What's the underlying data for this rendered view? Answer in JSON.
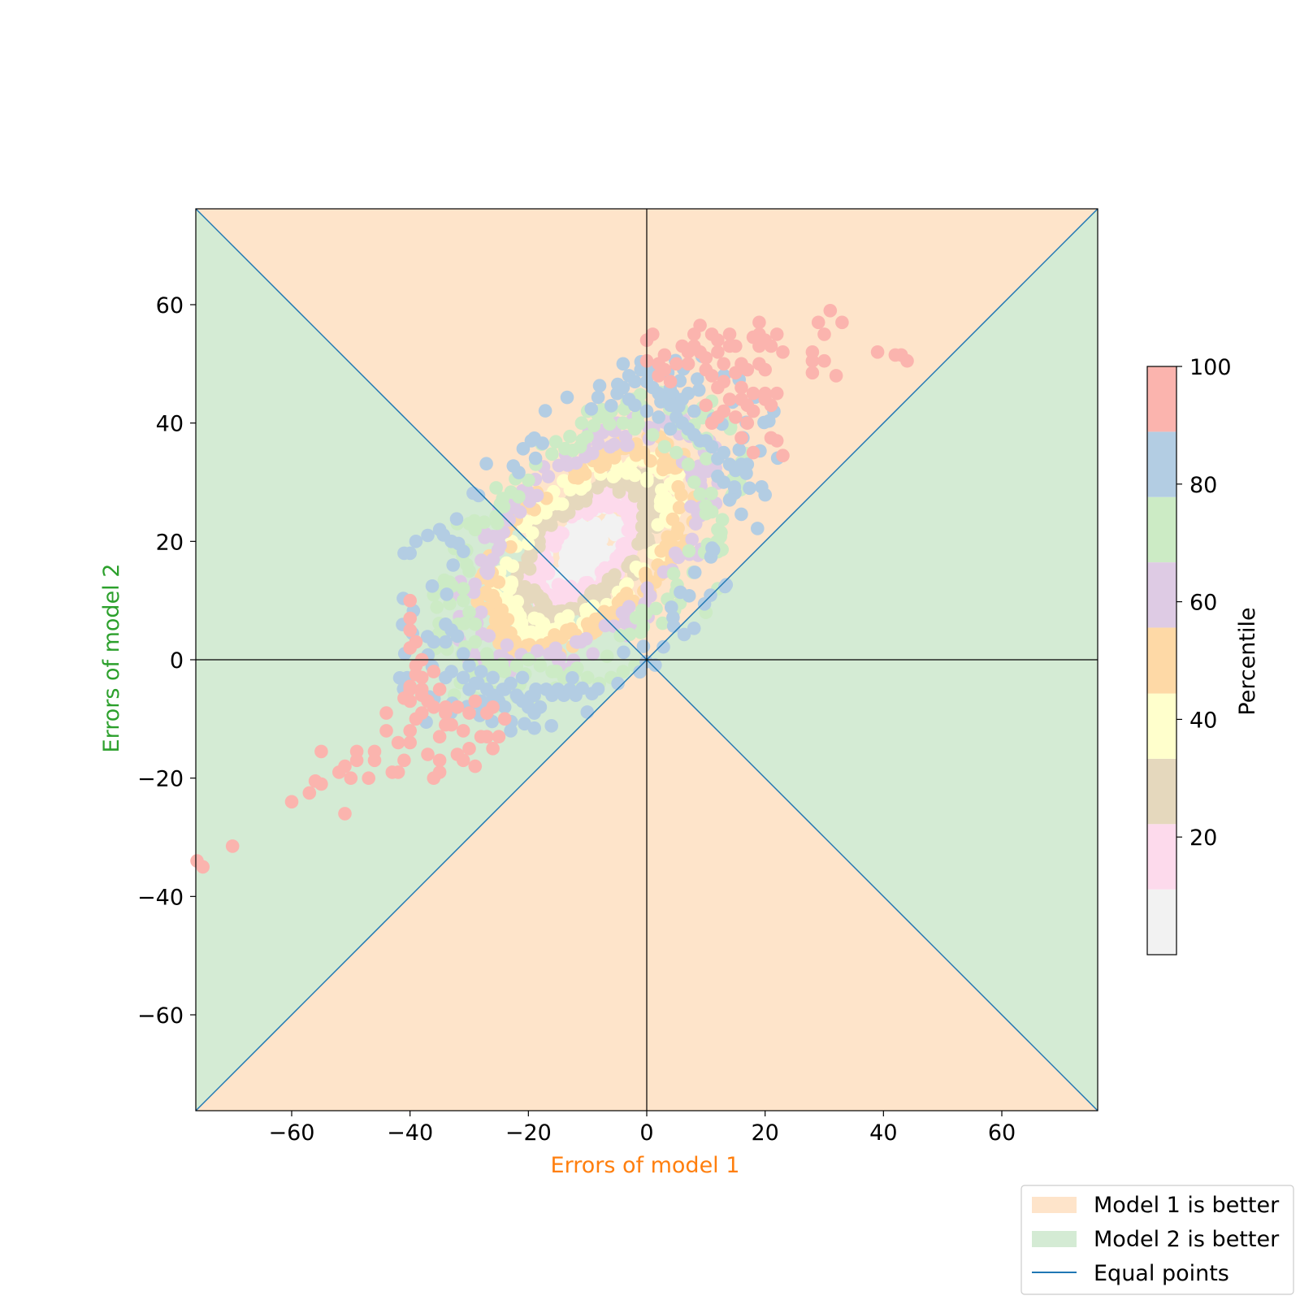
{
  "chart_data": {
    "type": "scatter",
    "xlabel": "Errors of model 1",
    "ylabel": "Errors of model 2",
    "xlim": [
      -76.2,
      76.2
    ],
    "ylim": [
      -76.2,
      76.2
    ],
    "xticks": [
      -60,
      -40,
      -20,
      0,
      20,
      40,
      60
    ],
    "yticks": [
      -60,
      -40,
      -20,
      0,
      20,
      40,
      60
    ],
    "tick_labels": [
      "−60",
      "−40",
      "−20",
      "0",
      "20",
      "40",
      "60"
    ],
    "xlabel_color": "#ff7f0e",
    "ylabel_color": "#2ca02c",
    "regions": [
      {
        "name": "Model 1 is better",
        "color": "#fee4ca"
      },
      {
        "name": "Model 2 is better",
        "color": "#d4ebd4"
      }
    ],
    "reference_lines": {
      "name": "Equal points",
      "color": "#1f77b4",
      "lines": [
        "y = x",
        "y = -x"
      ]
    },
    "center": [
      -10,
      19
    ],
    "colorbar": {
      "label": "Percentile",
      "range": [
        0,
        100
      ],
      "ticks": [
        20,
        40,
        60,
        80,
        100
      ],
      "tick_labels": [
        "20",
        "40",
        "60",
        "80",
        "100"
      ],
      "bins": [
        {
          "upto": 11.1,
          "color": "#f2f2f2"
        },
        {
          "upto": 22.2,
          "color": "#fddaec"
        },
        {
          "upto": 33.3,
          "color": "#e5d8bd"
        },
        {
          "upto": 44.4,
          "color": "#ffffcc"
        },
        {
          "upto": 55.6,
          "color": "#fed9a6"
        },
        {
          "upto": 66.7,
          "color": "#decbe4"
        },
        {
          "upto": 77.8,
          "color": "#ccebc5"
        },
        {
          "upto": 88.9,
          "color": "#b3cde3"
        },
        {
          "upto": 100,
          "color": "#fbb4ae"
        }
      ]
    },
    "outer_points": [
      [
        -76,
        -34
      ],
      [
        -75,
        -35
      ],
      [
        -70,
        -31.5
      ],
      [
        -60,
        -24
      ],
      [
        -57,
        -22.5
      ],
      [
        -56,
        -20.5
      ],
      [
        -55,
        -21
      ],
      [
        -55,
        -15.5
      ],
      [
        -52,
        -19
      ],
      [
        -51,
        -26
      ],
      [
        -51,
        -18
      ],
      [
        -50,
        -20
      ],
      [
        -49,
        -17
      ],
      [
        -49,
        -15.5
      ],
      [
        -47,
        -20
      ],
      [
        -46,
        -17
      ],
      [
        -46,
        -15.5
      ],
      [
        -44,
        -12
      ],
      [
        -44,
        -9
      ],
      [
        -43,
        -19
      ],
      [
        -42,
        -19
      ],
      [
        -42,
        -14
      ],
      [
        -41,
        -6.5
      ],
      [
        -41,
        -17
      ],
      [
        -40,
        -12
      ],
      [
        -40,
        -14
      ],
      [
        -39,
        -10
      ],
      [
        -38,
        -9
      ],
      [
        -38,
        -5
      ],
      [
        -37,
        -16
      ],
      [
        -36,
        -20
      ],
      [
        -35,
        -19
      ],
      [
        -35,
        -13
      ],
      [
        -35,
        -17
      ],
      [
        -34,
        -8
      ],
      [
        -34,
        -11
      ],
      [
        -32,
        -16
      ],
      [
        -31,
        -17
      ],
      [
        -30,
        -15
      ],
      [
        -29,
        -18
      ],
      [
        -28,
        -13
      ],
      [
        -27,
        -13
      ],
      [
        -27,
        -9
      ],
      [
        -26,
        -15
      ],
      [
        -25,
        -13
      ],
      [
        -24,
        -10
      ],
      [
        -26,
        -8
      ],
      [
        -38,
        -3
      ],
      [
        -38,
        -6
      ],
      [
        -39,
        -2.5
      ],
      [
        -40,
        -4.5
      ],
      [
        -40,
        -5
      ],
      [
        -40,
        -7
      ],
      [
        -39,
        -1
      ],
      [
        -40,
        2
      ],
      [
        -39,
        3
      ],
      [
        -40,
        7
      ],
      [
        -40,
        5
      ],
      [
        -40,
        10
      ],
      [
        -38,
        0
      ],
      [
        -36,
        -2
      ],
      [
        -35,
        -5
      ],
      [
        -37,
        -7
      ],
      [
        -36,
        -8
      ],
      [
        -34,
        -9
      ],
      [
        -32,
        -8
      ],
      [
        -33,
        -11
      ],
      [
        -31,
        -12
      ],
      [
        -30,
        -9
      ],
      [
        -29,
        -7
      ],
      [
        1,
        55
      ],
      [
        0,
        54
      ],
      [
        0,
        50.5
      ],
      [
        2,
        50
      ],
      [
        3,
        51.5
      ],
      [
        3,
        49
      ],
      [
        2,
        48
      ],
      [
        4,
        47
      ],
      [
        5,
        50
      ],
      [
        6,
        53
      ],
      [
        7,
        52
      ],
      [
        7,
        50
      ],
      [
        8,
        55
      ],
      [
        8,
        53
      ],
      [
        9,
        56.5
      ],
      [
        9,
        52
      ],
      [
        10,
        51
      ],
      [
        10,
        49
      ],
      [
        11,
        55
      ],
      [
        11,
        48
      ],
      [
        12,
        54
      ],
      [
        12,
        52
      ],
      [
        12,
        46
      ],
      [
        13,
        50
      ],
      [
        13,
        47
      ],
      [
        14,
        55
      ],
      [
        14,
        53
      ],
      [
        14,
        44
      ],
      [
        15,
        53
      ],
      [
        15,
        48.5
      ],
      [
        16,
        50
      ],
      [
        16,
        46
      ],
      [
        17,
        49
      ],
      [
        17,
        43
      ],
      [
        18,
        54.5
      ],
      [
        18,
        45
      ],
      [
        19,
        57
      ],
      [
        19,
        55
      ],
      [
        19,
        53
      ],
      [
        19,
        50
      ],
      [
        20,
        54
      ],
      [
        20,
        49
      ],
      [
        20,
        44
      ],
      [
        21,
        53
      ],
      [
        21,
        43
      ],
      [
        22,
        55
      ],
      [
        22,
        45
      ],
      [
        23,
        52
      ],
      [
        21,
        37.5
      ],
      [
        22,
        37
      ],
      [
        23,
        34.5
      ],
      [
        18,
        35
      ],
      [
        16,
        37.5
      ],
      [
        28,
        52
      ],
      [
        28,
        50.5
      ],
      [
        28,
        48.5
      ],
      [
        29,
        57
      ],
      [
        30,
        55
      ],
      [
        30,
        50.5
      ],
      [
        31,
        59
      ],
      [
        32,
        48
      ],
      [
        33,
        57
      ],
      [
        39,
        52
      ],
      [
        42,
        51.5
      ],
      [
        43,
        51.5
      ],
      [
        44,
        50.5
      ],
      [
        10,
        43
      ],
      [
        11,
        40
      ],
      [
        12,
        41
      ],
      [
        13,
        42
      ],
      [
        15,
        41
      ],
      [
        16,
        44
      ],
      [
        17,
        40
      ],
      [
        18,
        42
      ],
      [
        20,
        45
      ]
    ]
  },
  "legend": {
    "items": [
      {
        "label": "Model 1 is better",
        "color": "#fee4ca"
      },
      {
        "label": "Model 2 is better",
        "color": "#d4ebd4"
      },
      {
        "label": "Equal points",
        "color": "#1f77b4"
      }
    ]
  }
}
